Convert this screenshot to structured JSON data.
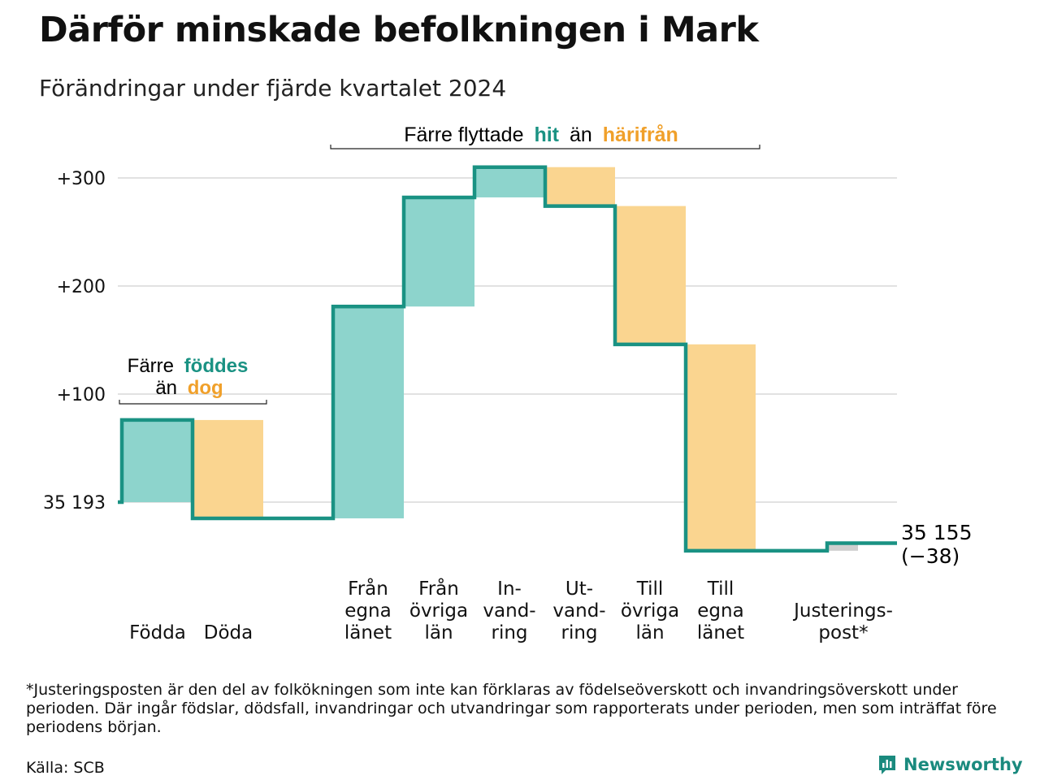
{
  "title": "Därför minskade befolkningen i Mark",
  "subtitle": "Förändringar under fjärde kvartalet 2024",
  "colors": {
    "inflow": "#8dd4cc",
    "outflow": "#fad590",
    "line": "#1a9283",
    "adjustment": "#cfcfcf",
    "grid": "#e2e2e2",
    "accent_teal": "#1a9283",
    "accent_orange": "#f0a02a"
  },
  "chart_data": {
    "type": "waterfall",
    "baseline": 35193,
    "ylim": [
      -45,
      315
    ],
    "yticks": [
      {
        "value": 0,
        "label": "35 193"
      },
      {
        "value": 100,
        "label": "+100"
      },
      {
        "value": 200,
        "label": "+200"
      },
      {
        "value": 300,
        "label": "+300"
      }
    ],
    "steps": [
      {
        "category": "Födda",
        "label_lines": [
          "Födda"
        ],
        "change": 76,
        "kind": "inflow"
      },
      {
        "category": "Döda",
        "label_lines": [
          "Döda"
        ],
        "change": -91,
        "kind": "outflow"
      },
      {
        "category": "Från egna länet",
        "label_lines": [
          "Från",
          "egna",
          "länet"
        ],
        "change": 196,
        "kind": "inflow"
      },
      {
        "category": "Från övriga län",
        "label_lines": [
          "Från",
          "övriga",
          "län"
        ],
        "change": 101,
        "kind": "inflow"
      },
      {
        "category": "Invandring",
        "label_lines": [
          "In-",
          "vand-",
          "ring"
        ],
        "change": 28,
        "kind": "inflow"
      },
      {
        "category": "Utvandring",
        "label_lines": [
          "Ut-",
          "vand-",
          "ring"
        ],
        "change": -36,
        "kind": "outflow"
      },
      {
        "category": "Till övriga län",
        "label_lines": [
          "Till",
          "övriga",
          "län"
        ],
        "change": -128,
        "kind": "outflow"
      },
      {
        "category": "Till egna länet",
        "label_lines": [
          "Till",
          "egna",
          "länet"
        ],
        "change": -191,
        "kind": "outflow"
      },
      {
        "category": "Justeringspost*",
        "label_lines": [
          "Justerings-",
          "post*"
        ],
        "change": 7,
        "kind": "adjustment"
      }
    ],
    "end_value_label": "35 155",
    "end_change_label": "(−38)",
    "annotations": {
      "births_deaths": {
        "prefix": "Färre",
        "highlight_teal": "föddes",
        "connector": "än",
        "highlight_orange": "dog"
      },
      "migration": {
        "prefix": "Färre flyttade",
        "highlight_teal": "hit",
        "connector": "än",
        "highlight_orange": "härifrån"
      }
    }
  },
  "footnote": "*Justeringsposten är den del av folkökningen som inte kan förklaras av födelseöverskott och invandringsöverskott under perioden. Där ingår födslar, dödsfall, invandringar och utvandringar som rapporterats under perioden, men som inträffat före periodens början.",
  "source": "Källa: SCB",
  "brand": {
    "name": "Newsworthy",
    "icon": "newsworthy-chart-icon"
  }
}
